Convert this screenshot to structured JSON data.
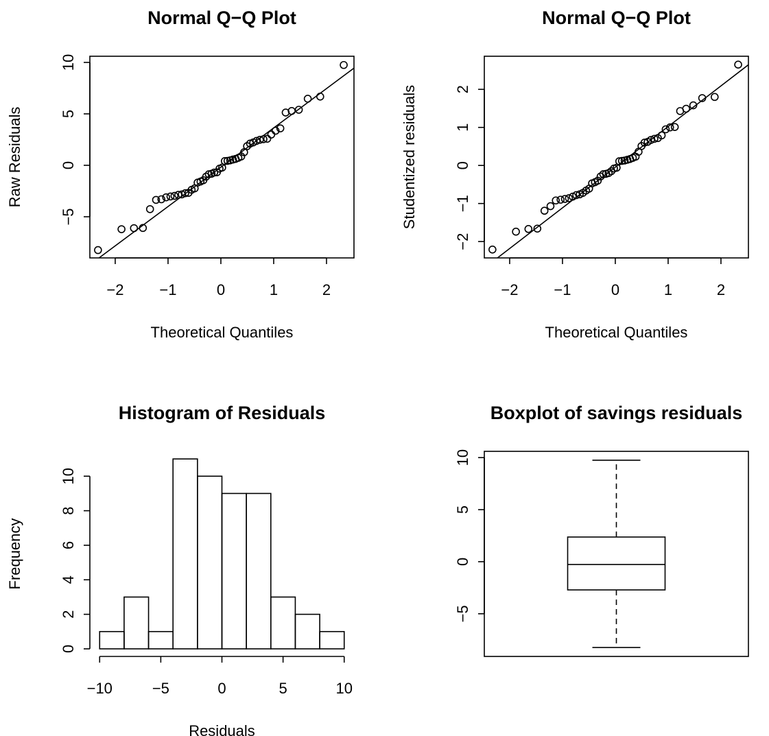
{
  "chart_data": [
    {
      "type": "scatter",
      "title": "Normal Q−Q Plot",
      "x_label": "Theoretical Quantiles",
      "y_label": "Raw Residuals",
      "x": [
        -2.326,
        -1.881,
        -1.645,
        -1.476,
        -1.341,
        -1.227,
        -1.126,
        -1.036,
        -0.954,
        -0.878,
        -0.806,
        -0.739,
        -0.674,
        -0.613,
        -0.553,
        -0.496,
        -0.44,
        -0.385,
        -0.332,
        -0.279,
        -0.228,
        -0.176,
        -0.126,
        -0.075,
        -0.025,
        0.025,
        0.075,
        0.126,
        0.176,
        0.228,
        0.279,
        0.332,
        0.385,
        0.44,
        0.496,
        0.553,
        0.613,
        0.674,
        0.739,
        0.806,
        0.878,
        0.954,
        1.036,
        1.126,
        1.227,
        1.341,
        1.476,
        1.645,
        1.881,
        2.326
      ],
      "values": [
        -8.24,
        -6.21,
        -6.11,
        -6.09,
        -4.26,
        -3.36,
        -3.3,
        -3.11,
        -3.03,
        -2.97,
        -2.87,
        -2.83,
        -2.71,
        -2.68,
        -2.38,
        -2.24,
        -1.68,
        -1.58,
        -1.45,
        -1.1,
        -0.87,
        -0.82,
        -0.7,
        -0.68,
        -0.32,
        -0.22,
        0.41,
        0.43,
        0.48,
        0.56,
        0.62,
        0.73,
        0.86,
        1.27,
        1.86,
        2.11,
        2.22,
        2.37,
        2.48,
        2.54,
        2.58,
        2.99,
        3.36,
        3.59,
        5.13,
        5.28,
        5.4,
        6.47,
        6.68,
        9.75
      ],
      "xlim": [
        -2.48,
        2.52
      ],
      "ylim": [
        -9.0,
        10.6
      ],
      "xticks": [
        {
          "value": -2,
          "label": "−2"
        },
        {
          "value": -1,
          "label": "−1"
        },
        0,
        1,
        2
      ],
      "yticks": [
        {
          "value": -5,
          "label": "−5"
        },
        0,
        5,
        10
      ]
    },
    {
      "type": "scatter",
      "title": "Normal Q−Q Plot",
      "x_label": "Theoretical Quantiles",
      "y_label": "Studentized residuals",
      "x": [
        -2.326,
        -1.881,
        -1.645,
        -1.476,
        -1.341,
        -1.227,
        -1.126,
        -1.036,
        -0.954,
        -0.878,
        -0.806,
        -0.739,
        -0.674,
        -0.613,
        -0.553,
        -0.496,
        -0.44,
        -0.385,
        -0.332,
        -0.279,
        -0.228,
        -0.176,
        -0.126,
        -0.075,
        -0.025,
        0.025,
        0.075,
        0.126,
        0.176,
        0.228,
        0.279,
        0.332,
        0.385,
        0.44,
        0.496,
        0.553,
        0.613,
        0.674,
        0.739,
        0.806,
        0.878,
        0.954,
        1.036,
        1.126,
        1.227,
        1.341,
        1.476,
        1.645,
        1.881,
        2.326
      ],
      "values": [
        -2.21,
        -1.74,
        -1.67,
        -1.66,
        -1.19,
        -1.07,
        -0.92,
        -0.9,
        -0.88,
        -0.86,
        -0.82,
        -0.78,
        -0.76,
        -0.72,
        -0.66,
        -0.61,
        -0.47,
        -0.44,
        -0.4,
        -0.29,
        -0.23,
        -0.22,
        -0.2,
        -0.15,
        -0.08,
        -0.06,
        0.11,
        0.12,
        0.13,
        0.15,
        0.17,
        0.2,
        0.23,
        0.36,
        0.51,
        0.6,
        0.62,
        0.67,
        0.7,
        0.72,
        0.79,
        0.95,
        1.0,
        1.01,
        1.43,
        1.49,
        1.58,
        1.77,
        1.8,
        2.65
      ],
      "xlim": [
        -2.48,
        2.52
      ],
      "ylim": [
        -2.43,
        2.87
      ],
      "xticks": [
        {
          "value": -2,
          "label": "−2"
        },
        {
          "value": -1,
          "label": "−1"
        },
        0,
        1,
        2
      ],
      "yticks": [
        {
          "value": -2,
          "label": "−2"
        },
        {
          "value": -1,
          "label": "−1"
        },
        0,
        1,
        2
      ]
    },
    {
      "type": "histogram",
      "title": "Histogram of Residuals",
      "x_label": "Residuals",
      "y_label": "Frequency",
      "bins": [
        -10,
        -8,
        -6,
        -4,
        -2,
        0,
        2,
        4,
        6,
        8,
        10
      ],
      "values": [
        1,
        3,
        1,
        11,
        10,
        9,
        9,
        3,
        2,
        1
      ],
      "xlim": [
        -10.8,
        10.8
      ],
      "ylim": [
        -0.44,
        11.44
      ],
      "xticks": [
        {
          "value": -10,
          "label": "−10"
        },
        {
          "value": -5,
          "label": "−5"
        },
        0,
        5,
        10
      ],
      "yticks": [
        0,
        2,
        4,
        6,
        8,
        10
      ]
    },
    {
      "type": "boxplot",
      "title": "Boxplot of savings residuals",
      "min": -8.24,
      "q1": -2.71,
      "median": -0.27,
      "q3": 2.37,
      "max": 9.75,
      "ylim": [
        -9.1,
        10.6
      ],
      "yticks": [
        {
          "value": -5,
          "label": "−5"
        },
        0,
        5,
        10
      ]
    }
  ]
}
